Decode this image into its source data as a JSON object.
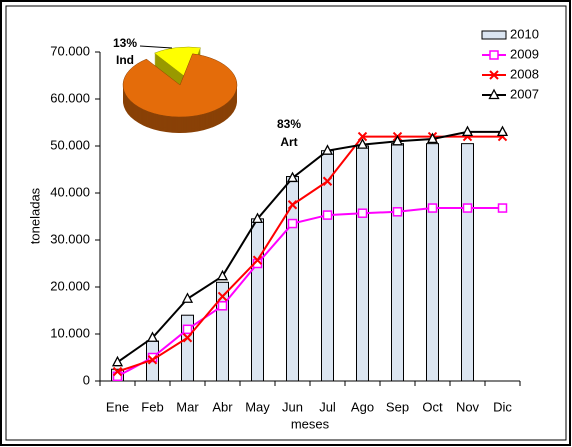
{
  "chart_data": [
    {
      "type": "combo",
      "y_label": "toneladas",
      "x_label": "meses",
      "categories": [
        "Ene",
        "Feb",
        "Mar",
        "Abr",
        "May",
        "Jun",
        "Jul",
        "Ago",
        "Sep",
        "Oct",
        "Nov",
        "Dic"
      ],
      "series": [
        {
          "name": "2010",
          "type": "bar",
          "color": "#dbe5f1",
          "values": [
            2500,
            8500,
            14000,
            21000,
            34500,
            43500,
            49000,
            50000,
            50500,
            50500,
            50500,
            null
          ]
        },
        {
          "name": "2009",
          "type": "line",
          "marker": "square",
          "color": "#ff00ff",
          "values": [
            1000,
            5000,
            11000,
            16000,
            25000,
            33500,
            35300,
            35700,
            36000,
            36800,
            36800,
            36800
          ]
        },
        {
          "name": "2008",
          "type": "line",
          "marker": "x",
          "color": "#ff0000",
          "values": [
            2000,
            4500,
            9200,
            18000,
            25700,
            37500,
            42500,
            52000,
            52000,
            52000,
            52000,
            52000
          ]
        },
        {
          "name": "2007",
          "type": "line",
          "marker": "triangle",
          "color": "#000000",
          "values": [
            4000,
            9200,
            17500,
            22300,
            34500,
            43200,
            49000,
            50300,
            51000,
            51500,
            53000,
            53000
          ]
        }
      ],
      "ylim": [
        0,
        70000
      ],
      "yticks": [
        0,
        {
          "value": 10000,
          "label": "10.000"
        },
        {
          "value": 20000,
          "label": "20.000"
        },
        {
          "value": 30000,
          "label": "30.000"
        },
        {
          "value": 40000,
          "label": "40.000"
        },
        {
          "value": 50000,
          "label": "50.000"
        },
        {
          "value": 60000,
          "label": "60.000"
        },
        {
          "value": 70000,
          "label": "70.000"
        }
      ],
      "grid": false,
      "legend": "upper right"
    },
    {
      "type": "pie",
      "categories": [
        "Ind",
        "Art"
      ],
      "values": [
        13,
        83
      ],
      "value_labels": [
        "13%",
        "83%"
      ],
      "colors": [
        "#ffff00",
        "#e46c0a"
      ]
    }
  ]
}
